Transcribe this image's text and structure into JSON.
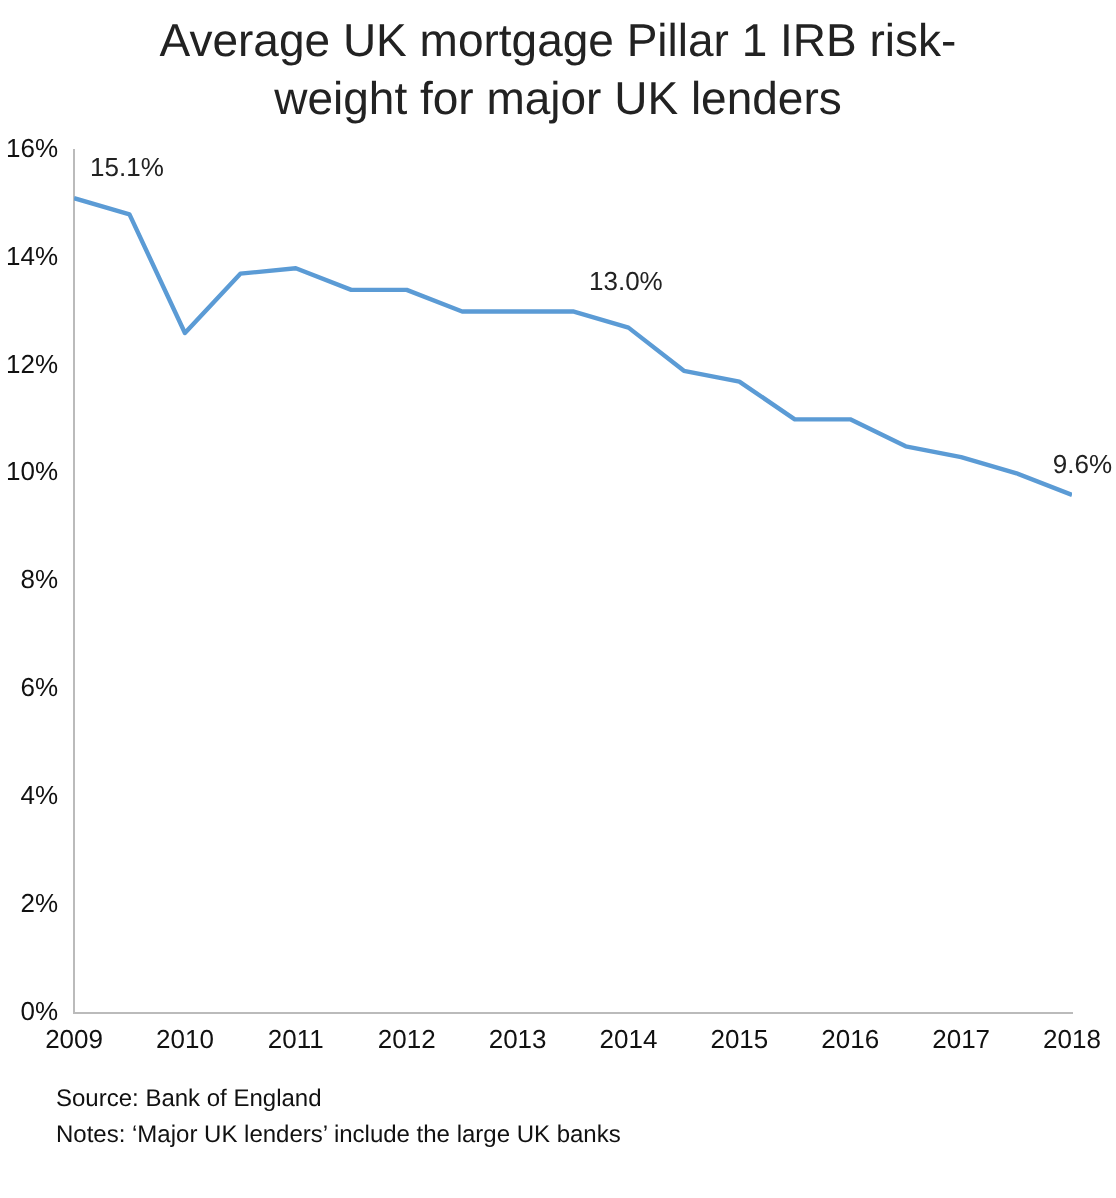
{
  "chart_data": {
    "type": "line",
    "title": "Average UK mortgage Pillar 1 IRB risk-weight for major UK lenders",
    "x": [
      2009,
      2009.5,
      2010,
      2010.5,
      2011,
      2011.5,
      2012,
      2012.5,
      2013,
      2013.5,
      2014,
      2014.5,
      2015,
      2015.5,
      2016,
      2016.5,
      2017,
      2017.5,
      2018
    ],
    "series": [
      {
        "color": "#5b9bd5",
        "values": [
          15.1,
          14.8,
          12.6,
          13.7,
          13.8,
          13.4,
          13.4,
          13.0,
          13.0,
          13.0,
          12.7,
          11.9,
          11.7,
          11.0,
          11.0,
          10.5,
          10.3,
          10.0,
          9.6
        ],
        "value_labels": [
          "15.1%",
          null,
          null,
          null,
          null,
          null,
          null,
          null,
          null,
          "13.0%",
          null,
          null,
          null,
          null,
          null,
          null,
          null,
          null,
          "9.6%"
        ]
      }
    ],
    "xlim": [
      2009,
      2018
    ],
    "xticks": [
      2009,
      2010,
      2011,
      2012,
      2013,
      2014,
      2015,
      2016,
      2017,
      2018
    ],
    "ylim": [
      0,
      16
    ],
    "yticks": [
      {
        "value": 0,
        "label": "0%"
      },
      {
        "value": 2,
        "label": "2%"
      },
      {
        "value": 4,
        "label": "4%"
      },
      {
        "value": 6,
        "label": "6%"
      },
      {
        "value": 8,
        "label": "8%"
      },
      {
        "value": 10,
        "label": "10%"
      },
      {
        "value": 12,
        "label": "12%"
      },
      {
        "value": 14,
        "label": "14%"
      },
      {
        "value": 16,
        "label": "16%"
      }
    ],
    "grid": false,
    "legend": false,
    "marker": "none",
    "line_style": "solid",
    "annotations": [
      "Source: Bank of England",
      "Notes: ‘Major UK lenders’ include the large UK banks"
    ]
  }
}
